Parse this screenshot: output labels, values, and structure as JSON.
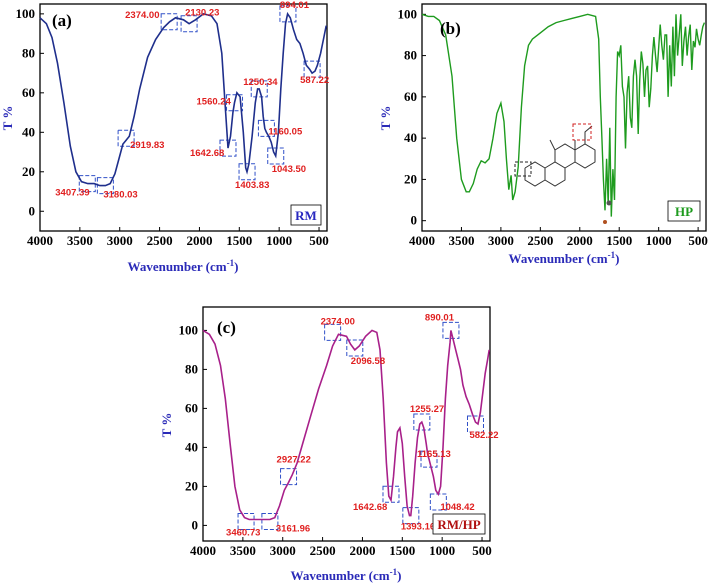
{
  "chart_data": [
    {
      "type": "line",
      "panel_label": "(a)",
      "sample_label": "RM",
      "color": "#1f2f8c",
      "label_color": "#2828c0",
      "xlabel": "Wavenumber (cm",
      "xlabel_sup": "-1",
      "xlabel_end": ")",
      "ylabel": "T %",
      "xlim": [
        4000,
        400
      ],
      "ylim": [
        -10,
        105
      ],
      "xticks": [
        4000,
        3500,
        3000,
        2500,
        2000,
        1500,
        1000,
        500
      ],
      "yticks": [
        0,
        20,
        40,
        60,
        80,
        100
      ],
      "series": [
        {
          "name": "RM",
          "x": [
            4000,
            3920,
            3850,
            3780,
            3700,
            3620,
            3550,
            3480,
            3400,
            3320,
            3250,
            3180,
            3120,
            3060,
            3000,
            2960,
            2920,
            2880,
            2820,
            2750,
            2650,
            2550,
            2450,
            2374,
            2300,
            2200,
            2130,
            2050,
            1950,
            1850,
            1780,
            1720,
            1680,
            1642,
            1610,
            1580,
            1560,
            1530,
            1490,
            1450,
            1420,
            1403,
            1380,
            1340,
            1300,
            1270,
            1250,
            1220,
            1200,
            1180,
            1160,
            1130,
            1100,
            1070,
            1043,
            1010,
            980,
            950,
            920,
            894,
            860,
            820,
            780,
            740,
            700,
            660,
            620,
            587,
            550,
            520,
            480,
            440,
            410
          ],
          "y": [
            98,
            95,
            88,
            75,
            55,
            33,
            20,
            15,
            14,
            14,
            13,
            13,
            14,
            19,
            28,
            34,
            36,
            38,
            48,
            62,
            78,
            87,
            93,
            96,
            98,
            97,
            95,
            97,
            100,
            99,
            95,
            80,
            55,
            32,
            38,
            50,
            55,
            60,
            58,
            40,
            22,
            20,
            24,
            38,
            55,
            62,
            62,
            58,
            48,
            42,
            40,
            38,
            35,
            30,
            28,
            40,
            62,
            80,
            95,
            100,
            98,
            92,
            87,
            85,
            80,
            74,
            72,
            70,
            71,
            74,
            80,
            88,
            94
          ]
        }
      ],
      "annotations": [
        {
          "text": "2374.00",
          "x": 2380,
          "y": 96
        },
        {
          "text": "2130.23",
          "x": 2130,
          "y": 95
        },
        {
          "text": "894.01",
          "x": 890,
          "y": 100
        },
        {
          "text": "2919.83",
          "x": 2920,
          "y": 37
        },
        {
          "text": "1560.24",
          "x": 1560,
          "y": 55
        },
        {
          "text": "1250.34",
          "x": 1250,
          "y": 62
        },
        {
          "text": "1642.68",
          "x": 1642,
          "y": 32
        },
        {
          "text": "1160.05",
          "x": 1160,
          "y": 42
        },
        {
          "text": "587.22",
          "x": 587,
          "y": 72
        },
        {
          "text": "3407.39",
          "x": 3407,
          "y": 14
        },
        {
          "text": "3180.03",
          "x": 3180,
          "y": 13
        },
        {
          "text": "1403.83",
          "x": 1403,
          "y": 20
        },
        {
          "text": "1043.50",
          "x": 1043,
          "y": 28
        }
      ]
    },
    {
      "type": "line",
      "panel_label": "(b)",
      "sample_label": "HP",
      "color": "#1e9b1e",
      "label_color": "#1e9b1e",
      "xlabel": "Wavenumber (cm",
      "xlabel_sup": "-1",
      "xlabel_end": ")",
      "ylabel": "T %",
      "xlim": [
        4000,
        400
      ],
      "ylim": [
        -5,
        105
      ],
      "xticks": [
        4000,
        3500,
        3000,
        2500,
        2000,
        1500,
        1000,
        500
      ],
      "yticks": [
        0,
        20,
        40,
        60,
        80,
        100
      ],
      "series": [
        {
          "name": "HP",
          "x": [
            4000,
            3920,
            3850,
            3780,
            3700,
            3620,
            3560,
            3500,
            3440,
            3400,
            3350,
            3300,
            3250,
            3200,
            3150,
            3100,
            3050,
            3000,
            2960,
            2930,
            2900,
            2870,
            2850,
            2820,
            2780,
            2740,
            2700,
            2650,
            2600,
            2500,
            2400,
            2300,
            2200,
            2100,
            2000,
            1900,
            1800,
            1760,
            1740,
            1720,
            1700,
            1680,
            1660,
            1640,
            1620,
            1600,
            1580,
            1560,
            1540,
            1520,
            1500,
            1480,
            1460,
            1440,
            1420,
            1400,
            1380,
            1360,
            1340,
            1320,
            1300,
            1280,
            1260,
            1240,
            1220,
            1200,
            1180,
            1160,
            1140,
            1120,
            1100,
            1080,
            1060,
            1040,
            1020,
            1000,
            980,
            960,
            940,
            920,
            900,
            880,
            860,
            840,
            820,
            800,
            780,
            760,
            740,
            720,
            700,
            680,
            660,
            640,
            620,
            600,
            580,
            560,
            540,
            520,
            500,
            480,
            460,
            440,
            420
          ],
          "y": [
            100,
            99,
            99,
            97,
            90,
            70,
            40,
            20,
            14,
            14,
            18,
            25,
            29,
            28,
            30,
            40,
            52,
            57,
            48,
            30,
            15,
            22,
            10,
            14,
            26,
            55,
            75,
            85,
            88,
            91,
            94,
            96,
            97,
            98,
            99,
            100,
            99,
            88,
            60,
            40,
            20,
            5,
            30,
            8,
            45,
            2,
            25,
            10,
            60,
            82,
            80,
            85,
            65,
            60,
            35,
            62,
            70,
            50,
            45,
            70,
            78,
            70,
            42,
            68,
            82,
            76,
            60,
            73,
            75,
            55,
            64,
            80,
            89,
            80,
            72,
            84,
            95,
            85,
            78,
            90,
            90,
            60,
            85,
            65,
            94,
            70,
            100,
            80,
            90,
            100,
            75,
            87,
            94,
            80,
            89,
            95,
            73,
            87,
            84,
            93,
            88,
            85,
            90,
            94,
            96
          ]
        }
      ],
      "annotations": []
    },
    {
      "type": "line",
      "panel_label": "(c)",
      "sample_label": "RM/HP",
      "color": "#a8208a",
      "label_color": "#b01010",
      "xlabel": "Wavenumber (cm",
      "xlabel_sup": "-1",
      "xlabel_end": ")",
      "ylabel": "T %",
      "xlim": [
        4000,
        400
      ],
      "ylim": [
        -8,
        112
      ],
      "xticks": [
        4000,
        3500,
        3000,
        2500,
        2000,
        1500,
        1000,
        500
      ],
      "yticks": [
        0,
        20,
        40,
        60,
        80,
        100
      ],
      "series": [
        {
          "name": "RM/HP",
          "x": [
            4000,
            3920,
            3850,
            3780,
            3720,
            3660,
            3600,
            3540,
            3480,
            3420,
            3360,
            3300,
            3240,
            3161,
            3100,
            3040,
            2980,
            2927,
            2880,
            2820,
            2750,
            2650,
            2550,
            2450,
            2374,
            2300,
            2200,
            2150,
            2096,
            2040,
            1960,
            1880,
            1820,
            1780,
            1740,
            1700,
            1670,
            1642,
            1610,
            1580,
            1560,
            1530,
            1500,
            1470,
            1440,
            1410,
            1393,
            1370,
            1340,
            1310,
            1280,
            1255,
            1230,
            1200,
            1180,
            1165,
            1140,
            1110,
            1080,
            1048,
            1020,
            990,
            960,
            930,
            900,
            890,
            860,
            830,
            800,
            770,
            740,
            700,
            660,
            620,
            582,
            550,
            520,
            490,
            460,
            430,
            410
          ],
          "y": [
            100,
            98,
            93,
            82,
            65,
            42,
            20,
            8,
            4,
            3,
            3,
            3,
            3,
            3,
            4,
            10,
            18,
            22,
            26,
            32,
            42,
            56,
            70,
            82,
            92,
            98,
            97,
            93,
            90,
            92,
            97,
            100,
            99,
            90,
            65,
            32,
            15,
            13,
            25,
            40,
            48,
            50,
            42,
            25,
            10,
            5,
            5,
            15,
            32,
            45,
            52,
            53,
            50,
            42,
            36,
            34,
            30,
            25,
            18,
            16,
            20,
            40,
            65,
            82,
            94,
            100,
            95,
            90,
            85,
            80,
            72,
            66,
            62,
            57,
            53,
            52,
            58,
            68,
            78,
            85,
            90
          ]
        }
      ],
      "annotations": [
        {
          "text": "2374.00",
          "x": 2374,
          "y": 99
        },
        {
          "text": "890.01",
          "x": 890,
          "y": 100
        },
        {
          "text": "2096.58",
          "x": 2096,
          "y": 91
        },
        {
          "text": "1255.27",
          "x": 1255,
          "y": 53
        },
        {
          "text": "1165.13",
          "x": 1165,
          "y": 34
        },
        {
          "text": "2927.22",
          "x": 2927,
          "y": 25
        },
        {
          "text": "582.22",
          "x": 582,
          "y": 52
        },
        {
          "text": "1642.68",
          "x": 1642,
          "y": 16
        },
        {
          "text": "1048.42",
          "x": 1048,
          "y": 12
        },
        {
          "text": "3460.73",
          "x": 3460,
          "y": 2
        },
        {
          "text": "3161.96",
          "x": 3161,
          "y": 2
        },
        {
          "text": "1393.16",
          "x": 1393,
          "y": 5
        }
      ]
    }
  ]
}
